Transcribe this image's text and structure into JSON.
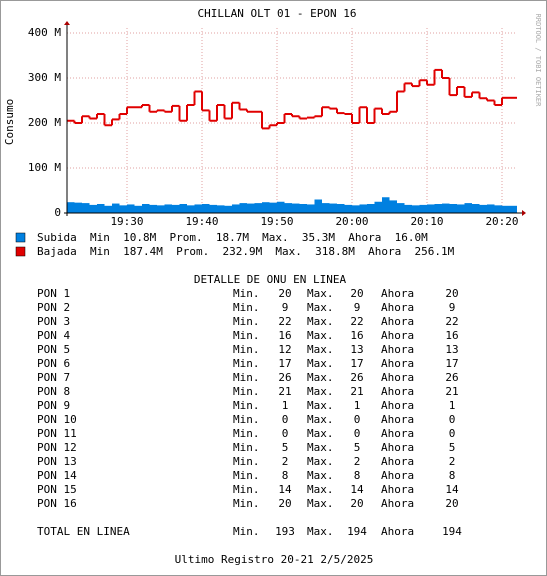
{
  "chart_data": {
    "type": "line",
    "title": "CHILLAN OLT 01 - EPON 16",
    "ylabel": "Consumo",
    "side_text": "RRDTOOL / TOBI OETIKER",
    "x": [
      1162,
      1163,
      1164,
      1165,
      1166,
      1167,
      1168,
      1169,
      1170,
      1171,
      1172,
      1173,
      1174,
      1175,
      1176,
      1177,
      1178,
      1179,
      1180,
      1181,
      1182,
      1183,
      1184,
      1185,
      1186,
      1187,
      1188,
      1189,
      1190,
      1191,
      1192,
      1193,
      1194,
      1195,
      1196,
      1197,
      1198,
      1199,
      1200,
      1201,
      1202,
      1203,
      1204,
      1205,
      1206,
      1207,
      1208,
      1209,
      1210,
      1211,
      1212,
      1213,
      1214,
      1215,
      1216,
      1217,
      1218,
      1219,
      1220,
      1221
    ],
    "xlim": [
      1162,
      1222
    ],
    "xticks": [
      {
        "value": 1170,
        "label": "19:30"
      },
      {
        "value": 1180,
        "label": "19:40"
      },
      {
        "value": 1190,
        "label": "19:50"
      },
      {
        "value": 1200,
        "label": "20:00"
      },
      {
        "value": 1210,
        "label": "20:10"
      },
      {
        "value": 1220,
        "label": "20:20"
      }
    ],
    "ylim": [
      0,
      400
    ],
    "yticks": [
      0,
      {
        "value": 100,
        "label": "100 M"
      },
      {
        "value": 200,
        "label": "200 M"
      },
      {
        "value": 300,
        "label": "300 M"
      },
      {
        "value": 400,
        "label": "400 M"
      }
    ],
    "grid": true,
    "series": [
      {
        "name": "Subida",
        "color": "#0080e0",
        "style": "area",
        "summary": "Min  10.8M  Prom.  18.7M  Max.  35.3M  Ahora  16.0M",
        "values": [
          24,
          23,
          22,
          18,
          20,
          16,
          21,
          17,
          19,
          16,
          20,
          18,
          17,
          19,
          18,
          20,
          17,
          19,
          20,
          18,
          17,
          16,
          19,
          22,
          21,
          22,
          24,
          23,
          25,
          22,
          21,
          20,
          19,
          30,
          22,
          21,
          20,
          18,
          17,
          19,
          20,
          25,
          35,
          28,
          22,
          18,
          17,
          18,
          19,
          20,
          21,
          20,
          19,
          22,
          20,
          18,
          19,
          17,
          16,
          16
        ]
      },
      {
        "name": "Bajada",
        "color": "#e00000",
        "style": "step",
        "summary": "Min  187.4M  Prom.  232.9M  Max.  318.8M  Ahora  256.1M",
        "values": [
          205,
          200,
          215,
          210,
          220,
          195,
          208,
          220,
          235,
          235,
          240,
          225,
          228,
          225,
          238,
          205,
          240,
          270,
          228,
          205,
          240,
          210,
          245,
          230,
          225,
          225,
          188,
          195,
          200,
          220,
          215,
          210,
          212,
          215,
          235,
          232,
          222,
          220,
          200,
          235,
          200,
          232,
          220,
          225,
          270,
          288,
          282,
          295,
          285,
          318,
          300,
          262,
          280,
          258,
          268,
          255,
          250,
          240,
          256,
          256
        ]
      }
    ]
  },
  "table": {
    "title": "DETALLE DE ONU EN LINEA",
    "labels": [
      "Min.",
      "Max.",
      "Ahora"
    ],
    "rows": [
      [
        "PON 1",
        20,
        20,
        20
      ],
      [
        "PON 2",
        9,
        9,
        9
      ],
      [
        "PON 3",
        22,
        22,
        22
      ],
      [
        "PON 4",
        16,
        16,
        16
      ],
      [
        "PON 5",
        12,
        13,
        13
      ],
      [
        "PON 6",
        17,
        17,
        17
      ],
      [
        "PON 7",
        26,
        26,
        26
      ],
      [
        "PON 8",
        21,
        21,
        21
      ],
      [
        "PON 9",
        1,
        1,
        1
      ],
      [
        "PON 10",
        0,
        0,
        0
      ],
      [
        "PON 11",
        0,
        0,
        0
      ],
      [
        "PON 12",
        5,
        5,
        5
      ],
      [
        "PON 13",
        2,
        2,
        2
      ],
      [
        "PON 14",
        8,
        8,
        8
      ],
      [
        "PON 15",
        14,
        14,
        14
      ],
      [
        "PON 16",
        20,
        20,
        20
      ]
    ],
    "total": [
      "TOTAL EN LINEA",
      193,
      194,
      194
    ]
  },
  "footer": "Ultimo Registro 20-21 2/5/2025"
}
